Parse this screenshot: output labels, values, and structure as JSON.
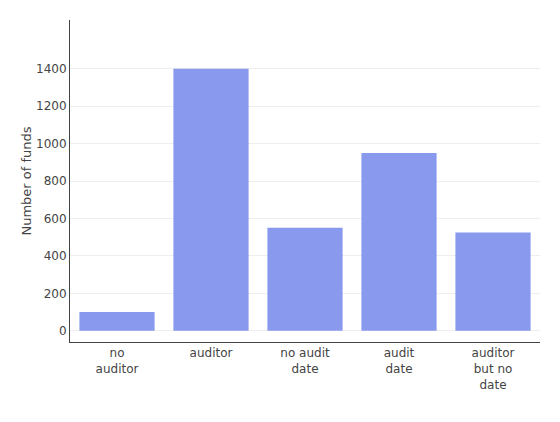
{
  "chart_data": {
    "type": "bar",
    "categories": [
      "no\nauditor",
      "auditor",
      "no audit\ndate",
      "audit\ndate",
      "auditor\nbut no\ndate"
    ],
    "values": [
      100,
      1400,
      550,
      950,
      525
    ],
    "color": "#8899ee",
    "ylabel": "Number of funds",
    "ylim": [
      -60,
      1660
    ],
    "yticks": [
      0,
      200,
      400,
      600,
      800,
      1000,
      1200,
      1400
    ],
    "grid": true
  }
}
